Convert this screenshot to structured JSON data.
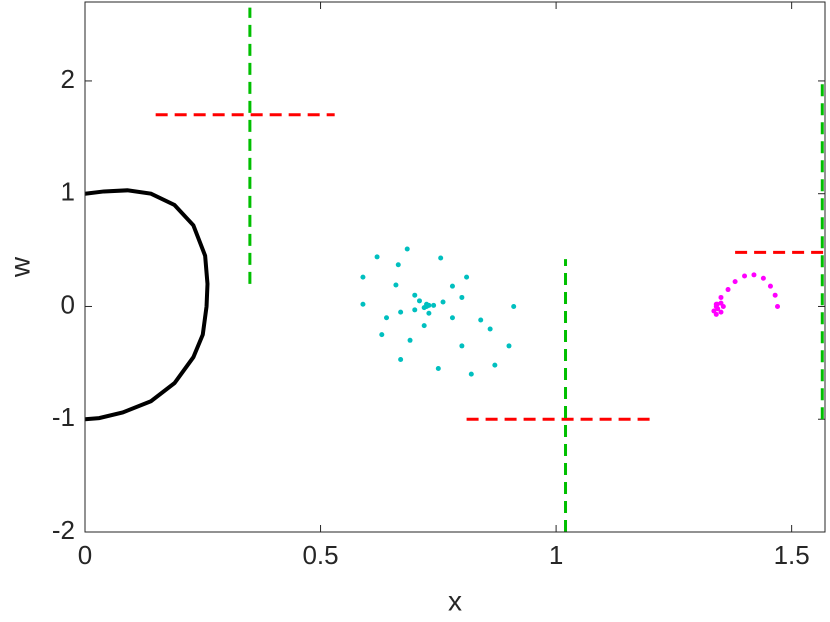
{
  "chart_data": {
    "type": "scatter",
    "xlabel": "x",
    "ylabel": "w",
    "xlim": [
      0,
      1.5708
    ],
    "ylim": [
      -2,
      2.7
    ],
    "xticks": [
      0,
      0.5,
      1,
      1.5
    ],
    "yticks": [
      -2,
      -1,
      0,
      1,
      2
    ],
    "series": [
      {
        "mode": "line",
        "color": "#000000",
        "x": [
          0,
          0.04,
          0.09,
          0.14,
          0.19,
          0.23,
          0.255,
          0.26,
          0.258,
          0.25,
          0.23,
          0.19,
          0.14,
          0.08,
          0.03,
          0
        ],
        "values": [
          1,
          1.02,
          1.03,
          1.0,
          0.9,
          0.72,
          0.45,
          0.2,
          0,
          -0.25,
          -0.45,
          -0.68,
          -0.84,
          -0.94,
          -0.99,
          -1
        ]
      },
      {
        "mode": "dots",
        "color": "#00bfbf",
        "x": [
          0.684,
          0.755,
          0.62,
          0.59,
          0.665,
          0.81,
          0.59,
          0.63,
          0.67,
          0.75,
          0.82,
          0.87,
          0.9,
          0.91,
          0.86,
          0.78,
          0.66,
          0.64,
          0.69,
          0.8,
          0.84,
          0.8,
          0.7,
          0.67,
          0.72,
          0.78,
          0.76,
          0.71,
          0.7,
          0.73,
          0.74,
          0.725,
          0.72,
          0.725,
          0.73
        ],
        "values": [
          0.51,
          0.43,
          0.44,
          0.26,
          0.37,
          0.26,
          0.02,
          -0.25,
          -0.47,
          -0.55,
          -0.6,
          -0.52,
          -0.35,
          0,
          -0.2,
          0.18,
          0.19,
          -0.1,
          -0.3,
          -0.35,
          -0.12,
          0.08,
          0.1,
          -0.05,
          -0.17,
          -0.1,
          0.04,
          0.05,
          -0.03,
          -0.06,
          0.01,
          0.02,
          -0.01,
          0,
          0.01
        ]
      },
      {
        "mode": "dots",
        "color": "#ff00ff",
        "x": [
          1.47,
          1.465,
          1.455,
          1.44,
          1.42,
          1.4,
          1.38,
          1.365,
          1.35,
          1.34,
          1.335,
          1.34,
          1.35,
          1.355,
          1.35,
          1.342,
          1.34,
          1.343
        ],
        "values": [
          0,
          0.1,
          0.18,
          0.25,
          0.28,
          0.27,
          0.22,
          0.15,
          0.08,
          0.02,
          -0.04,
          -0.07,
          -0.05,
          0,
          0.03,
          0.02,
          0,
          -0.02
        ]
      },
      {
        "mode": "dashed",
        "color": "#ff0000",
        "x": [
          0.15,
          0.53
        ],
        "values": [
          1.7,
          1.7
        ]
      },
      {
        "mode": "dashed",
        "color": "#00bf00",
        "x": [
          0.35,
          0.35
        ],
        "values": [
          0.2,
          2.65
        ]
      },
      {
        "mode": "dashed",
        "color": "#ff0000",
        "x": [
          0.81,
          1.2
        ],
        "values": [
          -1,
          -1
        ]
      },
      {
        "mode": "dashed",
        "color": "#00bf00",
        "x": [
          1.02,
          1.02
        ],
        "values": [
          -2,
          0.42
        ]
      },
      {
        "mode": "dashed",
        "color": "#ff0000",
        "x": [
          1.38,
          1.57
        ],
        "values": [
          0.48,
          0.48
        ]
      },
      {
        "mode": "dashed",
        "color": "#00bf00",
        "x": [
          1.565,
          1.565
        ],
        "values": [
          -1,
          2
        ]
      }
    ]
  }
}
